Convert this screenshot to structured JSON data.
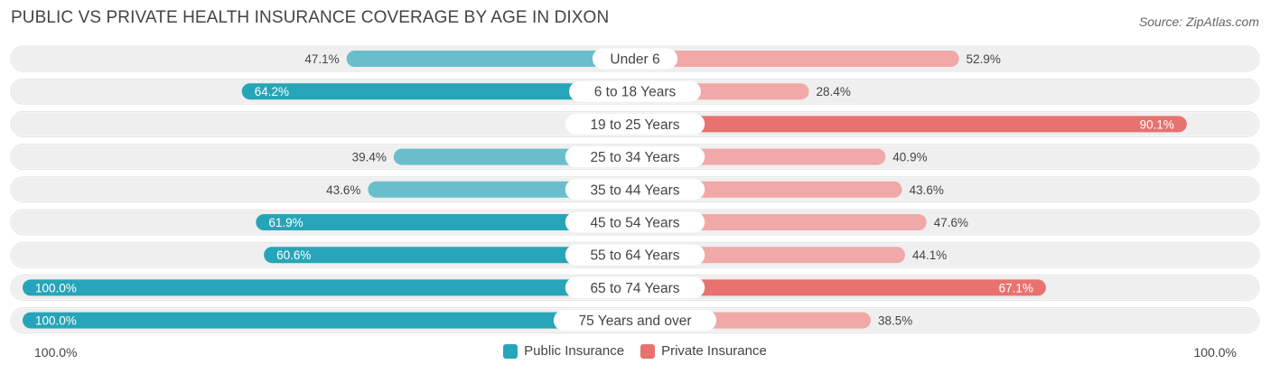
{
  "title": "PUBLIC VS PRIVATE HEALTH INSURANCE COVERAGE BY AGE IN DIXON",
  "source": "Source: ZipAtlas.com",
  "axis": {
    "left_label": "100.0%",
    "right_label": "100.0%"
  },
  "legend": {
    "public_label": "Public Insurance",
    "private_label": "Private Insurance"
  },
  "colors": {
    "public": "#5ab8c8",
    "public_strong": "#27a5b8",
    "private": "#f0a3a3",
    "private_strong": "#e8726f",
    "row_bg": "#efefef"
  },
  "chart_data": {
    "type": "bar",
    "orientation": "horizontal-diverging",
    "categories": [
      "Under 6",
      "6 to 18 Years",
      "19 to 25 Years",
      "25 to 34 Years",
      "35 to 44 Years",
      "45 to 54 Years",
      "55 to 64 Years",
      "65 to 74 Years",
      "75 Years and over"
    ],
    "series": [
      {
        "name": "Public Insurance",
        "values": [
          47.1,
          64.2,
          5.4,
          39.4,
          43.6,
          61.9,
          60.6,
          100.0,
          100.0
        ]
      },
      {
        "name": "Private Insurance",
        "values": [
          52.9,
          28.4,
          90.1,
          40.9,
          43.6,
          47.6,
          44.1,
          67.1,
          38.5
        ]
      }
    ],
    "xlim": [
      0,
      100
    ],
    "value_format": "{v}%"
  }
}
